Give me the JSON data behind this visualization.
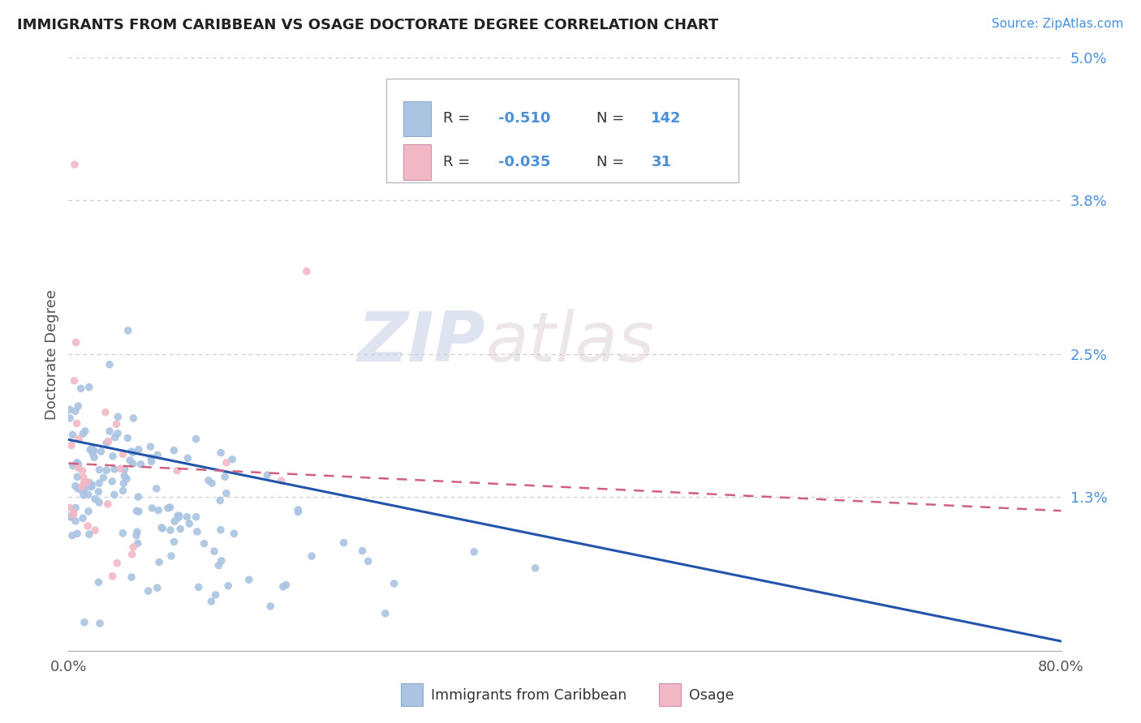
{
  "title": "IMMIGRANTS FROM CARIBBEAN VS OSAGE DOCTORATE DEGREE CORRELATION CHART",
  "source": "Source: ZipAtlas.com",
  "ylabel": "Doctorate Degree",
  "xlim": [
    0.0,
    0.8
  ],
  "ylim": [
    0.0,
    0.05
  ],
  "ytick_vals": [
    0.013,
    0.025,
    0.038,
    0.05
  ],
  "ytick_labels": [
    "1.3%",
    "2.5%",
    "3.8%",
    "5.0%"
  ],
  "xtick_vals": [
    0.0,
    0.8
  ],
  "xtick_labels": [
    "0.0%",
    "80.0%"
  ],
  "r_blue": -0.51,
  "n_blue": 142,
  "r_pink": -0.035,
  "n_pink": 31,
  "color_blue": "#aac4e2",
  "color_pink": "#f2b8c6",
  "line_blue": "#2255aa",
  "line_pink": "#d06080",
  "watermark_zip": "ZIP",
  "watermark_atlas": "atlas",
  "legend_labels": [
    "Immigrants from Caribbean",
    "Osage"
  ],
  "background_color": "#ffffff",
  "grid_color": "#c8c8c8",
  "title_color": "#222222",
  "source_color": "#4a90d9",
  "tick_color": "#4a90d9",
  "ylabel_color": "#555555",
  "legend_text_color": "#333333",
  "legend_val_color": "#4a90d9",
  "blue_line_start_y": 0.0178,
  "blue_line_end_y": 0.0008,
  "pink_line_start_y": 0.0158,
  "pink_line_end_y": 0.0118
}
